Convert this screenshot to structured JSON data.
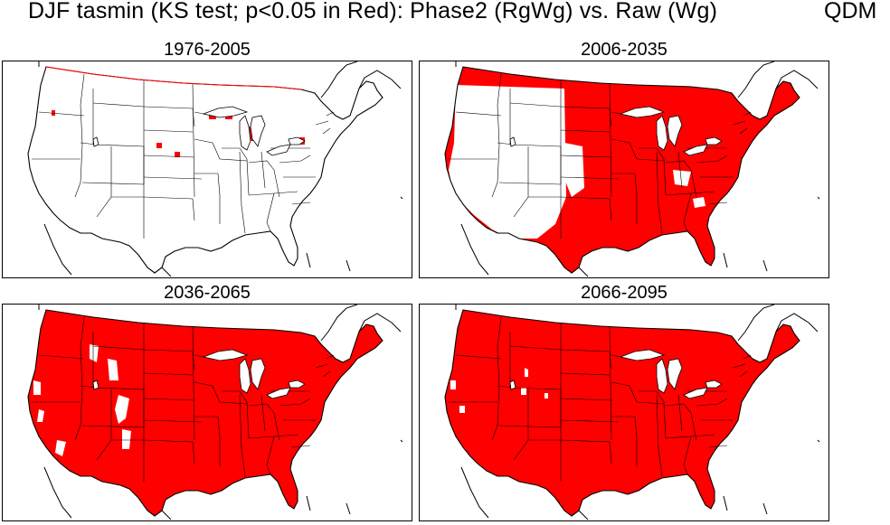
{
  "figure": {
    "title": "DJF  tasmin (KS test; p<0.05 in Red): Phase2 (RgWg) vs. Raw (Wg)",
    "tag": "QDM"
  },
  "colors": {
    "significant": "#ff0000",
    "not_significant": "#ffffff",
    "boundaries": "#000000"
  },
  "panels": [
    {
      "id": "p1",
      "title": "1976-2005",
      "fill": "sparse"
    },
    {
      "id": "p2",
      "title": "2006-2035",
      "fill": "east-heavy"
    },
    {
      "id": "p3",
      "title": "2036-2065",
      "fill": "mostly"
    },
    {
      "id": "p4",
      "title": "2066-2095",
      "fill": "nearly-all"
    }
  ]
}
